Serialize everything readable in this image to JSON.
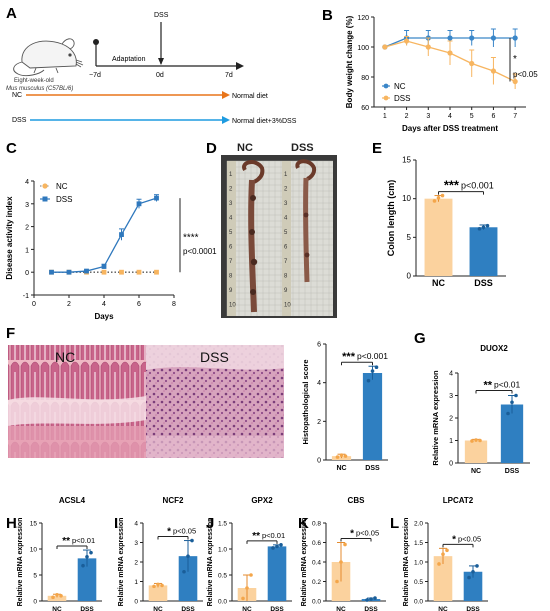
{
  "panels": {
    "A": {
      "letter": "A",
      "mouse_label_1": "Eight-week-old",
      "mouse_label_2": "Mus musculus (C57BL/6)",
      "day_start": "−7d",
      "day_mid": "0d",
      "day_end": "7d",
      "phase_label": "Adaptation",
      "dss_marker": "DSS",
      "nc_group": "NC",
      "nc_diet": "Normal diet",
      "dss_group": "DSS",
      "dss_diet": "Normal diet+3%DSS",
      "colors": {
        "nc_arrow": "#e8751a",
        "dss_arrow": "#1e9be0"
      }
    },
    "B": {
      "letter": "B",
      "chart_data": {
        "type": "line",
        "xlabel": "Days after DSS treatment",
        "ylabel": "Body weight change (%)",
        "x": [
          1,
          2,
          3,
          4,
          5,
          6,
          7
        ],
        "xticks": [
          "1",
          "2",
          "3",
          "4",
          "5",
          "6",
          "7"
        ],
        "ylim": [
          60,
          120
        ],
        "yticks": [
          "60",
          "80",
          "100",
          "120"
        ],
        "series": [
          {
            "name": "NC",
            "color": "#3a86c8",
            "values": [
              100,
              106,
              106,
              106,
              106,
              106,
              106
            ],
            "err": [
              0,
              5,
              5,
              5,
              5,
              6,
              6
            ]
          },
          {
            "name": "DSS",
            "color": "#f7b560",
            "values": [
              100,
              104,
              100,
              96,
              89,
              84,
              77
            ],
            "err": [
              0,
              3,
              6,
              8,
              9,
              9,
              5
            ]
          }
        ],
        "annotation": "*",
        "pvalue": "p<0.05",
        "legend": "center-right"
      }
    },
    "C": {
      "letter": "C",
      "chart_data": {
        "type": "line",
        "xlabel": "Days",
        "ylabel": "Disease activity index",
        "x": [
          1,
          2,
          3,
          4,
          5,
          6,
          7
        ],
        "xlim": [
          0,
          8
        ],
        "xticks": [
          "0",
          "2",
          "4",
          "6",
          "8"
        ],
        "ylim": [
          -1,
          4
        ],
        "yticks": [
          "-1",
          "0",
          "1",
          "2",
          "3",
          "4"
        ],
        "series": [
          {
            "name": "NC",
            "color": "#f7b560",
            "values": [
              0,
              0,
              0,
              0,
              0,
              0,
              0
            ],
            "err": [
              0,
              0,
              0,
              0,
              0,
              0,
              0
            ]
          },
          {
            "name": "DSS",
            "color": "#2f78bd",
            "values": [
              0,
              0,
              0.05,
              0.25,
              1.65,
              3.0,
              3.25
            ],
            "err": [
              0,
              0,
              0.05,
              0.1,
              0.25,
              0.2,
              0.15
            ]
          }
        ],
        "annotation": "****",
        "pvalue": "p<0.0001",
        "legend": "top-left"
      }
    },
    "D": {
      "letter": "D",
      "label_nc": "NC",
      "label_dss": "DSS",
      "ruler_marks": [
        "1",
        "2",
        "3",
        "4",
        "5",
        "6",
        "7",
        "8",
        "9",
        "10"
      ]
    },
    "E": {
      "letter": "E",
      "chart_data": {
        "type": "bar",
        "categories": [
          "NC",
          "DSS"
        ],
        "values": [
          10.0,
          6.3
        ],
        "err": [
          0.4,
          0.3
        ],
        "points": [
          [
            9.7,
            10.1,
            10.4
          ],
          [
            6.1,
            6.3,
            6.5
          ]
        ],
        "ylabel": "Colon length (cm)",
        "ylim": [
          0,
          15
        ],
        "yticks": [
          "0",
          "5",
          "10",
          "15"
        ],
        "annotation": "***",
        "pvalue": "p<0.001"
      }
    },
    "F": {
      "letter": "F",
      "histo_label_nc": "NC",
      "histo_label_dss": "DSS",
      "chart_data": {
        "type": "bar",
        "categories": [
          "NC",
          "DSS"
        ],
        "values": [
          0.2,
          4.5
        ],
        "err": [
          0.1,
          0.35
        ],
        "points": [
          [
            0.15,
            0.25,
            0.2
          ],
          [
            4.1,
            4.6,
            4.8
          ]
        ],
        "ylabel": "Histopathological score",
        "ylim": [
          0,
          6
        ],
        "yticks": [
          "0",
          "2",
          "4",
          "6"
        ],
        "annotation": "***",
        "pvalue": "p<0.001"
      }
    },
    "G": {
      "letter": "G",
      "chart_data": {
        "type": "bar",
        "title": "DUOX2",
        "categories": [
          "NC",
          "DSS"
        ],
        "values": [
          1.0,
          2.6
        ],
        "err": [
          0.05,
          0.4
        ],
        "points": [
          [
            0.98,
            1.02,
            1.0
          ],
          [
            2.2,
            2.7,
            3.0
          ]
        ],
        "ylabel": "Relative mRNA expression",
        "ylim": [
          0,
          4
        ],
        "yticks": [
          "0",
          "1",
          "2",
          "3",
          "4"
        ],
        "annotation": "**",
        "pvalue": "p<0.01"
      }
    },
    "H": {
      "letter": "H",
      "chart_data": {
        "type": "bar",
        "title": "ACSL4",
        "categories": [
          "NC",
          "DSS"
        ],
        "values": [
          1.0,
          8.2
        ],
        "err": [
          0.3,
          1.6
        ],
        "points": [
          [
            0.7,
            1.2,
            1.0
          ],
          [
            6.8,
            8.5,
            9.3
          ]
        ],
        "ylabel": "Relative mRNA expression",
        "ylim": [
          0,
          15
        ],
        "yticks": [
          "0",
          "5",
          "10",
          "15"
        ],
        "annotation": "**",
        "pvalue": "p<0.01"
      }
    },
    "I": {
      "letter": "I",
      "chart_data": {
        "type": "bar",
        "title": "NCF2",
        "categories": [
          "NC",
          "DSS"
        ],
        "values": [
          0.8,
          2.3
        ],
        "err": [
          0.1,
          0.8
        ],
        "points": [
          [
            0.75,
            0.85,
            0.8
          ],
          [
            1.5,
            2.3,
            3.1
          ]
        ],
        "ylabel": "Relative mRNA expression",
        "ylim": [
          0,
          4
        ],
        "yticks": [
          "0",
          "1",
          "2",
          "3",
          "4"
        ],
        "annotation": "*",
        "pvalue": "p<0.05"
      }
    },
    "J": {
      "letter": "J",
      "chart_data": {
        "type": "bar",
        "title": "GPX2",
        "categories": [
          "NC",
          "DSS"
        ],
        "values": [
          0.25,
          1.05
        ],
        "err": [
          0.25,
          0.03
        ],
        "points": [
          [
            0.05,
            0.25,
            0.5
          ],
          [
            1.02,
            1.05,
            1.08
          ]
        ],
        "ylabel": "Relative mRNA expression",
        "ylim": [
          0,
          1.5
        ],
        "yticks": [
          "0.0",
          "0.5",
          "1.0",
          "1.5"
        ],
        "annotation": "**",
        "pvalue": "p<0.01"
      }
    },
    "K": {
      "letter": "K",
      "chart_data": {
        "type": "bar",
        "title": "CBS",
        "categories": [
          "NC",
          "DSS"
        ],
        "values": [
          0.4,
          0.02
        ],
        "err": [
          0.2,
          0.01
        ],
        "points": [
          [
            0.2,
            0.4,
            0.58
          ],
          [
            0.01,
            0.02,
            0.03
          ]
        ],
        "ylabel": "Relative mRNA expression",
        "ylim": [
          0,
          0.8
        ],
        "yticks": [
          "0.0",
          "0.2",
          "0.4",
          "0.6",
          "0.8"
        ],
        "annotation": "*",
        "pvalue": "p<0.05"
      }
    },
    "L": {
      "letter": "L",
      "chart_data": {
        "type": "bar",
        "title": "LPCAT2",
        "categories": [
          "NC",
          "DSS"
        ],
        "values": [
          1.15,
          0.75
        ],
        "err": [
          0.2,
          0.15
        ],
        "points": [
          [
            0.95,
            1.2,
            1.3
          ],
          [
            0.6,
            0.75,
            0.9
          ]
        ],
        "ylabel": "Relative mRNA expression",
        "ylim": [
          0,
          2.0
        ],
        "yticks": [
          "0.0",
          "0.5",
          "1.0",
          "1.5",
          "2.0"
        ],
        "annotation": "*",
        "pvalue": "p<0.05"
      }
    }
  },
  "colors": {
    "nc_bar": "#fbd29e",
    "nc_point": "#f4a64a",
    "dss_bar": "#2f7fc1",
    "dss_point": "#1a5e99",
    "histo_nc_bg": "#efb9c4",
    "histo_dss_bg": "#d7a3bd"
  }
}
